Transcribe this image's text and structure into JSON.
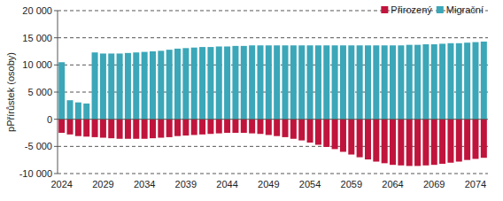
{
  "chart_data": {
    "type": "bar",
    "y_label": "pPřírůstek (osoby)",
    "categories": [
      "2024",
      null,
      null,
      null,
      null,
      "2029",
      null,
      null,
      null,
      null,
      "2034",
      null,
      null,
      null,
      null,
      "2039",
      null,
      null,
      null,
      null,
      "2044",
      null,
      null,
      null,
      null,
      "2049",
      null,
      null,
      null,
      null,
      "2054",
      null,
      null,
      null,
      null,
      "2059",
      null,
      null,
      null,
      null,
      "2064",
      null,
      null,
      null,
      null,
      "2069",
      null,
      null,
      null,
      null,
      "2074",
      null
    ],
    "series": [
      {
        "name": "Přirozený",
        "color": "#c0143c",
        "values": [
          -2500,
          -2800,
          -3100,
          -3200,
          -3300,
          -3400,
          -3500,
          -3600,
          -3600,
          -3600,
          -3600,
          -3500,
          -3400,
          -3300,
          -3100,
          -3000,
          -2900,
          -2800,
          -2700,
          -2600,
          -2500,
          -2500,
          -2500,
          -2600,
          -2700,
          -2900,
          -3100,
          -3300,
          -3600,
          -3900,
          -4300,
          -4700,
          -5100,
          -5500,
          -6000,
          -6500,
          -7000,
          -7400,
          -7800,
          -8100,
          -8400,
          -8500,
          -8600,
          -8600,
          -8500,
          -8400,
          -8200,
          -8000,
          -7800,
          -7500,
          -7300,
          -7100
        ]
      },
      {
        "name": "Migrační",
        "color": "#3ba7b8",
        "values": [
          10500,
          3500,
          3100,
          2900,
          12300,
          12100,
          12100,
          12100,
          12200,
          12300,
          12400,
          12500,
          12600,
          12800,
          13000,
          13100,
          13200,
          13300,
          13300,
          13400,
          13400,
          13500,
          13500,
          13600,
          13600,
          13600,
          13600,
          13600,
          13600,
          13600,
          13600,
          13600,
          13600,
          13600,
          13600,
          13600,
          13600,
          13600,
          13600,
          13600,
          13600,
          13600,
          13700,
          13700,
          13800,
          13800,
          13900,
          14000,
          14000,
          14100,
          14200,
          14300
        ]
      }
    ],
    "ylim": [
      -10000,
      20000
    ],
    "yticks": [
      {
        "value": -10000,
        "label": "-10 000"
      },
      {
        "value": -5000,
        "label": "-5 000"
      },
      0,
      {
        "value": 5000,
        "label": "5 000"
      },
      {
        "value": 10000,
        "label": "10 000"
      },
      {
        "value": 15000,
        "label": "15 000"
      },
      {
        "value": 20000,
        "label": "20 000"
      }
    ],
    "stacked": true,
    "grid": true,
    "legend": "top-right"
  }
}
